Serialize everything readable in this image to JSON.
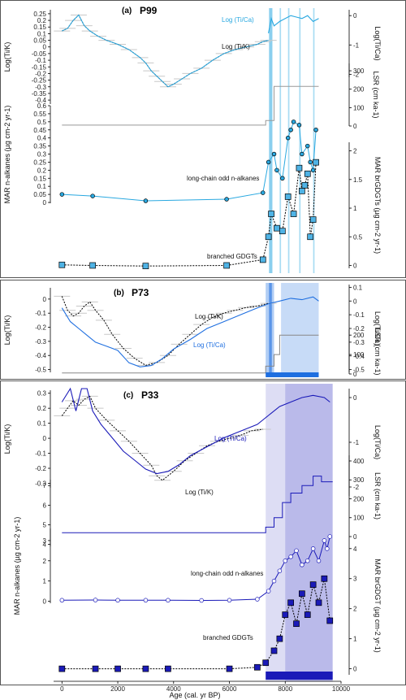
{
  "chart_data": {
    "type": "line",
    "x_axis": {
      "label": "Age (cal. yr BP)",
      "ticks": [
        0,
        2000,
        4000,
        6000,
        8000,
        10000
      ],
      "range": [
        -300,
        10000
      ]
    },
    "panels": [
      {
        "id": "a",
        "panel_label": "(a)",
        "core": "P99",
        "y_left": {
          "label": "Log(Ti/K)",
          "ticks": [
            -0.4,
            -0.35,
            -0.3,
            -0.25,
            -0.2,
            -0.15,
            -0.1,
            -0.05,
            0,
            0.05,
            0.1,
            0.15,
            0.2,
            0.25
          ],
          "range": [
            -0.43,
            0.28
          ]
        },
        "y_right_top": {
          "label": "Log(Ti/Ca)",
          "ticks": [
            0,
            -1,
            -2
          ],
          "range": [
            -2.1,
            0.2
          ]
        },
        "y_right_lsr": {
          "label": "LSR (cm ka-1)",
          "ticks": [
            0,
            100,
            200,
            300
          ],
          "range": [
            0,
            340
          ]
        },
        "y_left_mar": {
          "label": "MAR n-alkanes (µg cm-2 yr-1)",
          "ticks": [
            0,
            0.05,
            0.1,
            0.15,
            0.2,
            0.25,
            0.3,
            0.35,
            0.4,
            0.45,
            0.5,
            0.55,
            0.6
          ],
          "range": [
            -0.005,
            0.6
          ]
        },
        "y_right_mar": {
          "label": "MAR brGDGTs (µg cm-2 yr-1)",
          "ticks": [
            0,
            0.5,
            1,
            1.5,
            2
          ],
          "range": [
            -0.05,
            2.15
          ]
        },
        "annotations": {
          "tik": "Log (Ti/K)",
          "tica": "Log (Ti/Ca)",
          "nalk": "long-chain odd n-alkanes",
          "gdgt": "branched GDGTs"
        },
        "series": [
          {
            "name": "Log (Ti/K)",
            "axis": "left",
            "x": [
              0,
              200,
              400,
              600,
              800,
              1000,
              1300,
              1600,
              2000,
              2400,
              2800,
              3000,
              3200,
              3400,
              3600,
              3800,
              4000,
              4300,
              4600,
              5000,
              5400,
              5800,
              6200,
              6600,
              7000,
              7200,
              7400
            ],
            "y": [
              0.12,
              0.14,
              0.2,
              0.24,
              0.16,
              0.12,
              0.08,
              0.05,
              0.02,
              -0.02,
              -0.08,
              -0.12,
              -0.18,
              -0.22,
              -0.26,
              -0.3,
              -0.28,
              -0.24,
              -0.2,
              -0.16,
              -0.1,
              -0.05,
              -0.02,
              0.0,
              0.02,
              0.04,
              0.05
            ]
          },
          {
            "name": "Log (Ti/Ca)",
            "axis": "right_top",
            "x": [
              7400,
              7500,
              7600,
              7800,
              8000,
              8200,
              8400,
              8600,
              8800,
              9000,
              9200
            ],
            "y": [
              -0.6,
              -0.1,
              -0.35,
              -0.2,
              -0.1,
              0.0,
              -0.05,
              -0.1,
              0.0,
              -0.2,
              -0.1
            ]
          },
          {
            "name": "LSR",
            "axis": "right_lsr",
            "x": [
              0,
              7300,
              7300,
              7600,
              7600,
              9200
            ],
            "y": [
              5,
              5,
              30,
              30,
              215,
              215
            ]
          },
          {
            "name": "long-chain odd n-alkanes",
            "axis": "left_mar",
            "x": [
              0,
              1100,
              3000,
              5900,
              7200,
              7400,
              7600,
              7700,
              7900,
              8100,
              8200,
              8300,
              8500,
              8600,
              8800,
              8900,
              9000,
              9100
            ],
            "y": [
              0.05,
              0.04,
              0.01,
              0.02,
              0.06,
              0.25,
              0.3,
              0.2,
              0.15,
              0.4,
              0.45,
              0.5,
              0.48,
              0.3,
              0.35,
              0.25,
              0.2,
              0.45
            ]
          },
          {
            "name": "branched GDGTs",
            "axis": "right_mar",
            "x": [
              0,
              1100,
              3000,
              5900,
              7200,
              7400,
              7500,
              7700,
              7900,
              8100,
              8300,
              8500,
              8600,
              8700,
              8800,
              8900,
              9000,
              9100
            ],
            "y": [
              0.01,
              0.0,
              -0.01,
              0.0,
              0.1,
              0.5,
              0.9,
              0.65,
              0.6,
              1.2,
              0.9,
              1.7,
              1.3,
              1.4,
              1.6,
              0.5,
              0.8,
              1.8
            ]
          }
        ]
      },
      {
        "id": "b",
        "panel_label": "(b)",
        "core": "P73",
        "y_left": {
          "label": "Log(Ti/K)",
          "ticks": [
            0,
            -0.1,
            -0.2,
            -0.3,
            -0.4,
            -0.5
          ],
          "range": [
            -0.52,
            0.08
          ]
        },
        "y_right_top": {
          "label": "Log(Ti/Ca)",
          "ticks": [
            0.1,
            0,
            -0.1,
            -0.2,
            -0.3,
            -0.4,
            -0.5
          ],
          "range": [
            -0.52,
            0.12
          ]
        },
        "y_right_lsr": {
          "label": "LSR (cm ka-1)",
          "ticks": [
            0,
            100,
            200
          ],
          "range": [
            0,
            230
          ]
        },
        "annotations": {
          "tik": "Log (Ti/K)",
          "tica": "Log (Ti/Ca)"
        },
        "series": [
          {
            "name": "Log (Ti/K)",
            "axis": "left",
            "x": [
              0,
              200,
              400,
              600,
              800,
              1000,
              1200,
              1500,
              1800,
              2200,
              2600,
              3000,
              3400,
              3800,
              4200,
              4600,
              5000,
              5400,
              5800,
              6200,
              6600,
              7000,
              7400
            ],
            "y": [
              0.02,
              -0.08,
              -0.12,
              -0.1,
              -0.05,
              -0.02,
              -0.08,
              -0.15,
              -0.25,
              -0.35,
              -0.42,
              -0.47,
              -0.45,
              -0.4,
              -0.32,
              -0.25,
              -0.18,
              -0.13,
              -0.1,
              -0.08,
              -0.06,
              -0.05,
              -0.03
            ]
          },
          {
            "name": "Log (Ti/Ca)",
            "axis": "right_top",
            "x": [
              0,
              300,
              600,
              900,
              1200,
              1600,
              2000,
              2400,
              2800,
              3200,
              3600,
              4000,
              4600,
              5200,
              5800,
              6400,
              7000,
              7400,
              7800,
              8200,
              8600,
              9000,
              9200
            ],
            "y": [
              -0.05,
              -0.15,
              -0.2,
              -0.25,
              -0.3,
              -0.33,
              -0.36,
              -0.45,
              -0.48,
              -0.47,
              -0.42,
              -0.35,
              -0.28,
              -0.2,
              -0.15,
              -0.1,
              -0.05,
              -0.02,
              0.0,
              0.02,
              0.01,
              0.03,
              0.0
            ]
          },
          {
            "name": "LSR",
            "axis": "right_lsr",
            "x": [
              0,
              7300,
              7300,
              7600,
              7600,
              7800,
              7800,
              9200
            ],
            "y": [
              5,
              5,
              40,
              40,
              100,
              100,
              200,
              200
            ]
          }
        ]
      },
      {
        "id": "c",
        "panel_label": "(c)",
        "core": "P33",
        "y_left": {
          "label": "Log(Ti/K)",
          "ticks": [
            0.3,
            0.2,
            0.1,
            0,
            -0.1,
            -0.2,
            -0.3
          ],
          "range": [
            -0.33,
            0.32
          ]
        },
        "y_right_top": {
          "label": "Log(Ti/Ca)",
          "ticks": [
            0,
            -1,
            -2
          ],
          "range": [
            -2.2,
            0.2
          ]
        },
        "y_right_lsr": {
          "label": "LSR (cm ka-1)",
          "ticks": [
            0,
            100,
            200,
            300,
            400
          ],
          "range": [
            0,
            430
          ]
        },
        "y_left_mar": {
          "label": "MAR n-alkanes (µg cm-2 yr-1)",
          "ticks": [
            4,
            5,
            6,
            7
          ],
          "range": [
            3.9,
            7.3
          ]
        },
        "y_left_mar2": {
          "label": "MAR n-alkanes (µg cm-2 yr-1)",
          "ticks": [
            0,
            1,
            2,
            3
          ],
          "range": [
            -0.1,
            3.6
          ]
        },
        "y_right_mar": {
          "label": "MAR brGDGT (µg cm-2 yr-1)",
          "ticks": [
            0,
            1,
            2,
            3,
            4
          ],
          "range": [
            -0.2,
            4.4
          ]
        },
        "annotations": {
          "tik": "Log (Ti/K)",
          "tica": "Log (Ti/Ca)",
          "nalk": "long-chain odd n-alkanes",
          "gdgt": "branched GDGTs"
        },
        "series": [
          {
            "name": "Log (Ti/K)",
            "axis": "left",
            "x": [
              0,
              200,
              400,
              600,
              800,
              1000,
              1200,
              1600,
              2000,
              2400,
              2800,
              3200,
              3400,
              3600,
              4000,
              4400,
              4800,
              5200,
              5600,
              6000,
              6400,
              6800,
              7200
            ],
            "y": [
              0.15,
              0.2,
              0.25,
              0.22,
              0.26,
              0.28,
              0.2,
              0.12,
              0.05,
              -0.02,
              -0.1,
              -0.18,
              -0.25,
              -0.28,
              -0.22,
              -0.15,
              -0.1,
              -0.05,
              -0.02,
              0.0,
              0.02,
              0.05,
              0.06
            ]
          },
          {
            "name": "Log (Ti/Ca)",
            "axis": "right_top",
            "x": [
              0,
              300,
              500,
              700,
              900,
              1100,
              1400,
              1800,
              2200,
              2600,
              3000,
              3400,
              3800,
              4200,
              4600,
              5200,
              5800,
              6400,
              7000,
              7400,
              7800,
              8200,
              8600,
              9000,
              9400,
              9600
            ],
            "y": [
              -0.1,
              0.2,
              -0.3,
              0.2,
              0.2,
              -0.3,
              -0.6,
              -0.9,
              -1.2,
              -1.4,
              -1.6,
              -1.7,
              -1.65,
              -1.5,
              -1.3,
              -1.1,
              -0.9,
              -0.75,
              -0.6,
              -0.4,
              -0.2,
              -0.1,
              0.0,
              0.05,
              0.0,
              -0.1
            ]
          },
          {
            "name": "LSR",
            "axis": "right_lsr",
            "x": [
              0,
              7300,
              7300,
              7600,
              7600,
              7900,
              7900,
              8200,
              8200,
              8600,
              8600,
              9000,
              9000,
              9300,
              9300,
              9700
            ],
            "y": [
              20,
              20,
              50,
              50,
              100,
              100,
              180,
              180,
              230,
              230,
              270,
              270,
              320,
              320,
              290,
              290
            ]
          },
          {
            "name": "long-chain odd n-alkanes",
            "axis": "left_mar2",
            "x": [
              0,
              1200,
              2000,
              3000,
              3800,
              5000,
              6000,
              7000,
              7400,
              7600,
              7800,
              8000,
              8200,
              8400,
              8600,
              8800,
              9000,
              9200,
              9400,
              9500,
              9600
            ],
            "y": [
              0.05,
              0.06,
              0.05,
              0.05,
              0.05,
              0.04,
              0.05,
              0.1,
              0.5,
              1.0,
              1.5,
              2.0,
              2.2,
              2.5,
              1.8,
              2.0,
              2.6,
              2.0,
              3.0,
              2.6,
              3.2
            ]
          },
          {
            "name": "branched GDGTs",
            "axis": "right_mar",
            "x": [
              0,
              1200,
              2000,
              3000,
              3800,
              6000,
              7000,
              7300,
              7600,
              7800,
              8000,
              8200,
              8400,
              8600,
              8800,
              9000,
              9200,
              9400,
              9600
            ],
            "y": [
              0.0,
              0.0,
              0.0,
              0.0,
              0.0,
              0.0,
              0.05,
              0.2,
              0.6,
              1.0,
              1.8,
              2.2,
              1.5,
              2.5,
              1.8,
              2.8,
              2.2,
              3.0,
              1.6
            ]
          }
        ]
      }
    ]
  }
}
